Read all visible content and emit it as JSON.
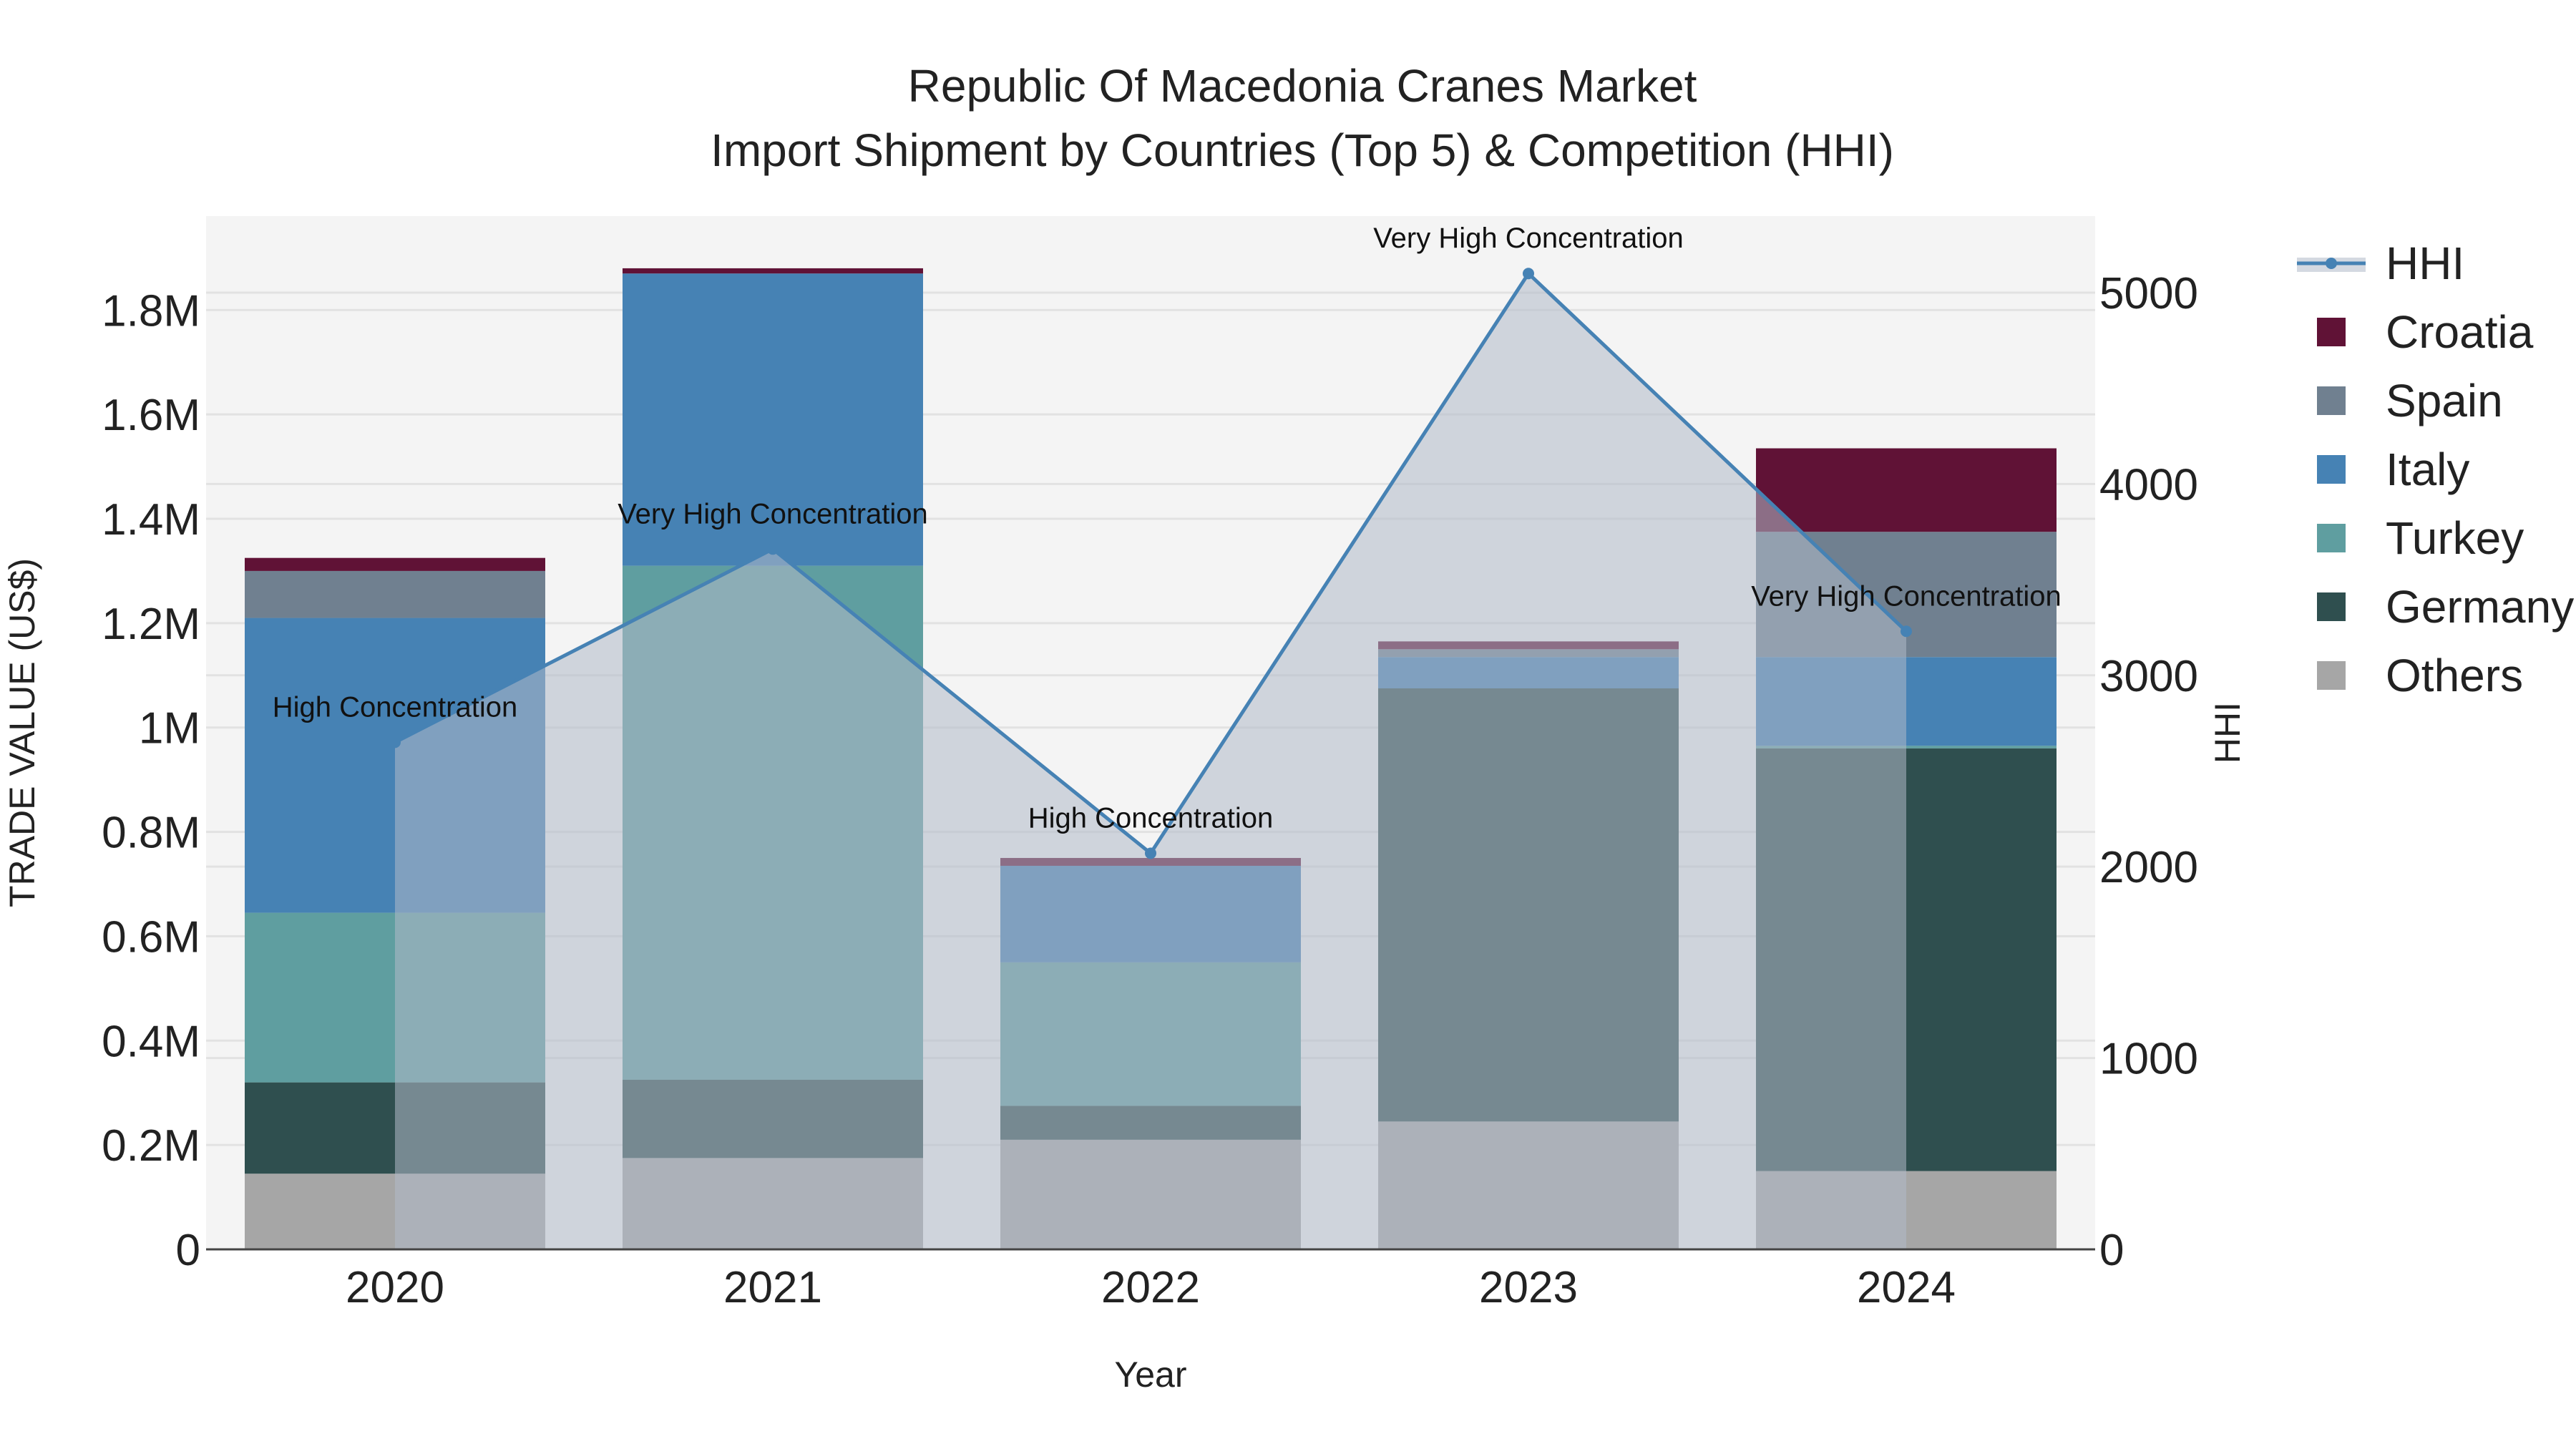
{
  "chart_data": {
    "type": "bar",
    "title_line1": "Republic Of Macedonia Cranes Market",
    "title_line2": "Import Shipment by Countries (Top 5) & Competition (HHI)",
    "xlabel": "Year",
    "ylabel": "TRADE VALUE (US$)",
    "y2label": "HHI",
    "categories": [
      "2020",
      "2021",
      "2022",
      "2023",
      "2024"
    ],
    "ylim": [
      0,
      1980000
    ],
    "y2lim": [
      0,
      5400
    ],
    "yticks": [
      {
        "value": 0,
        "label": "0"
      },
      {
        "value": 200000,
        "label": "0.2M"
      },
      {
        "value": 400000,
        "label": "0.4M"
      },
      {
        "value": 600000,
        "label": "0.6M"
      },
      {
        "value": 800000,
        "label": "0.8M"
      },
      {
        "value": 1000000,
        "label": "1M"
      },
      {
        "value": 1200000,
        "label": "1.2M"
      },
      {
        "value": 1400000,
        "label": "1.4M"
      },
      {
        "value": 1600000,
        "label": "1.6M"
      },
      {
        "value": 1800000,
        "label": "1.8M"
      }
    ],
    "y2ticks": [
      {
        "value": 0,
        "label": "0"
      },
      {
        "value": 1000,
        "label": "1000"
      },
      {
        "value": 2000,
        "label": "2000"
      },
      {
        "value": 3000,
        "label": "3000"
      },
      {
        "value": 4000,
        "label": "4000"
      },
      {
        "value": 5000,
        "label": "5000"
      }
    ],
    "series": [
      {
        "name": "Others",
        "color": "#a6a6a6",
        "values": [
          145000,
          175000,
          210000,
          245000,
          150000
        ]
      },
      {
        "name": "Germany",
        "color": "#2f4f4f",
        "values": [
          175000,
          150000,
          65000,
          830000,
          810000
        ]
      },
      {
        "name": "Turkey",
        "color": "#5f9ea0",
        "values": [
          325000,
          985000,
          275000,
          0,
          5000
        ]
      },
      {
        "name": "Italy",
        "color": "#4682b4",
        "values": [
          565000,
          560000,
          185000,
          60000,
          170000
        ]
      },
      {
        "name": "Spain",
        "color": "#708090",
        "values": [
          90000,
          0,
          0,
          15000,
          240000
        ]
      },
      {
        "name": "Croatia",
        "color": "#601236",
        "values": [
          25000,
          10000,
          15000,
          15000,
          160000
        ]
      }
    ],
    "hhi": {
      "name": "HHI",
      "color": "#4682b4",
      "values": [
        2650,
        3660,
        2070,
        5100,
        3230
      ],
      "annotations": [
        "High Concentration",
        "Very High Concentration",
        "High Concentration",
        "Very High Concentration",
        "Very High Concentration"
      ]
    },
    "legend_order": [
      "HHI",
      "Croatia",
      "Spain",
      "Italy",
      "Turkey",
      "Germany",
      "Others"
    ],
    "legend_position": "right"
  }
}
